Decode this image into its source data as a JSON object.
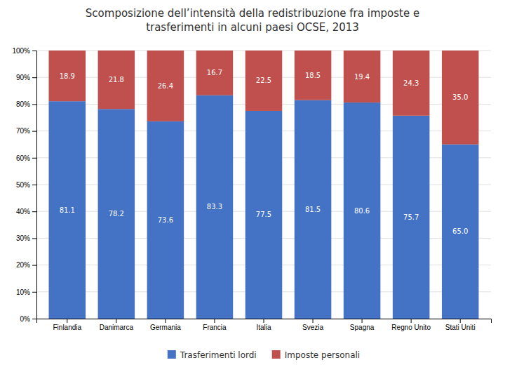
{
  "chart_data": {
    "type": "bar",
    "title": "Scomposizione dell’intensità della redistribuzione fra imposte e\ntrasferimenti in alcuni paesi OCSE, 2013",
    "categories": [
      "Finlandia",
      "Danimarca",
      "Germania",
      "Francia",
      "Italia",
      "Svezia",
      "Spagna",
      "Regno Unito",
      "Stati Uniti"
    ],
    "series": [
      {
        "name": "Trasferimenti lordi",
        "color": "#4472C4",
        "values": [
          81.1,
          78.2,
          73.6,
          83.3,
          77.5,
          81.5,
          80.6,
          75.7,
          65.0
        ],
        "value_labels": [
          "81.1",
          "78.2",
          "73.6",
          "83.3",
          "77.5",
          "81.5",
          "80.6",
          "75.7",
          "65.0"
        ]
      },
      {
        "name": "Imposte personali",
        "color": "#C0504D",
        "values": [
          18.9,
          21.8,
          26.4,
          16.7,
          22.5,
          18.5,
          19.4,
          24.3,
          35.0
        ],
        "value_labels": [
          "18.9",
          "21.8",
          "26.4",
          "16.7",
          "22.5",
          "18.5",
          "19.4",
          "24.3",
          "35.0"
        ]
      }
    ],
    "stacked": true,
    "data_labels": true,
    "ylim": [
      0,
      100
    ],
    "yticks": [
      {
        "value": 0,
        "label": "0%"
      },
      {
        "value": 10,
        "label": "10%"
      },
      {
        "value": 20,
        "label": "20%"
      },
      {
        "value": 30,
        "label": "30%"
      },
      {
        "value": 40,
        "label": "40%"
      },
      {
        "value": 50,
        "label": "50%"
      },
      {
        "value": 60,
        "label": "60%"
      },
      {
        "value": 70,
        "label": "70%"
      },
      {
        "value": 80,
        "label": "80%"
      },
      {
        "value": 90,
        "label": "90%"
      },
      {
        "value": 100,
        "label": "100%"
      }
    ],
    "grid": true,
    "legend": "bottom"
  }
}
